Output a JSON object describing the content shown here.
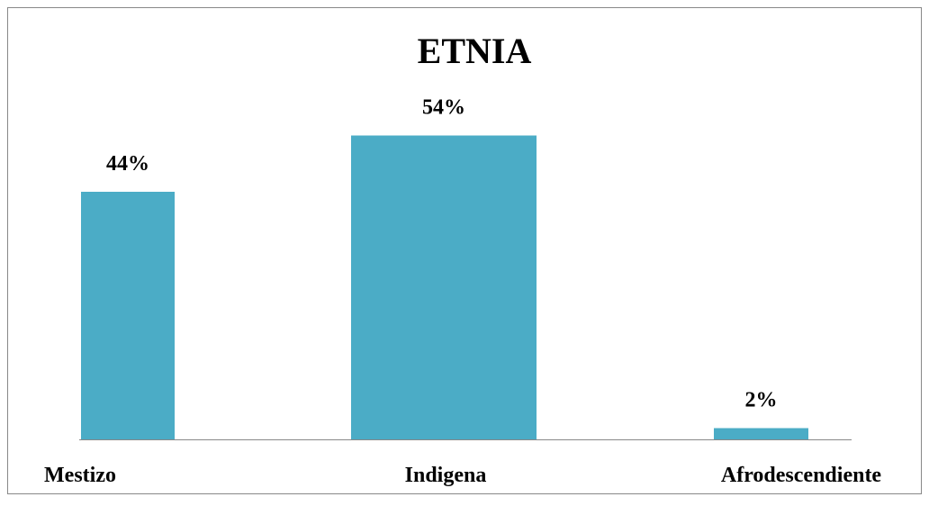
{
  "chart_data": {
    "type": "bar",
    "title": "ETNIA",
    "categories": [
      "Mestizo",
      "Indigena",
      "Afrodescendiente"
    ],
    "values": [
      44,
      54,
      2
    ],
    "value_labels": [
      "44%",
      "54%",
      "2%"
    ],
    "color": "#4bacc6"
  }
}
